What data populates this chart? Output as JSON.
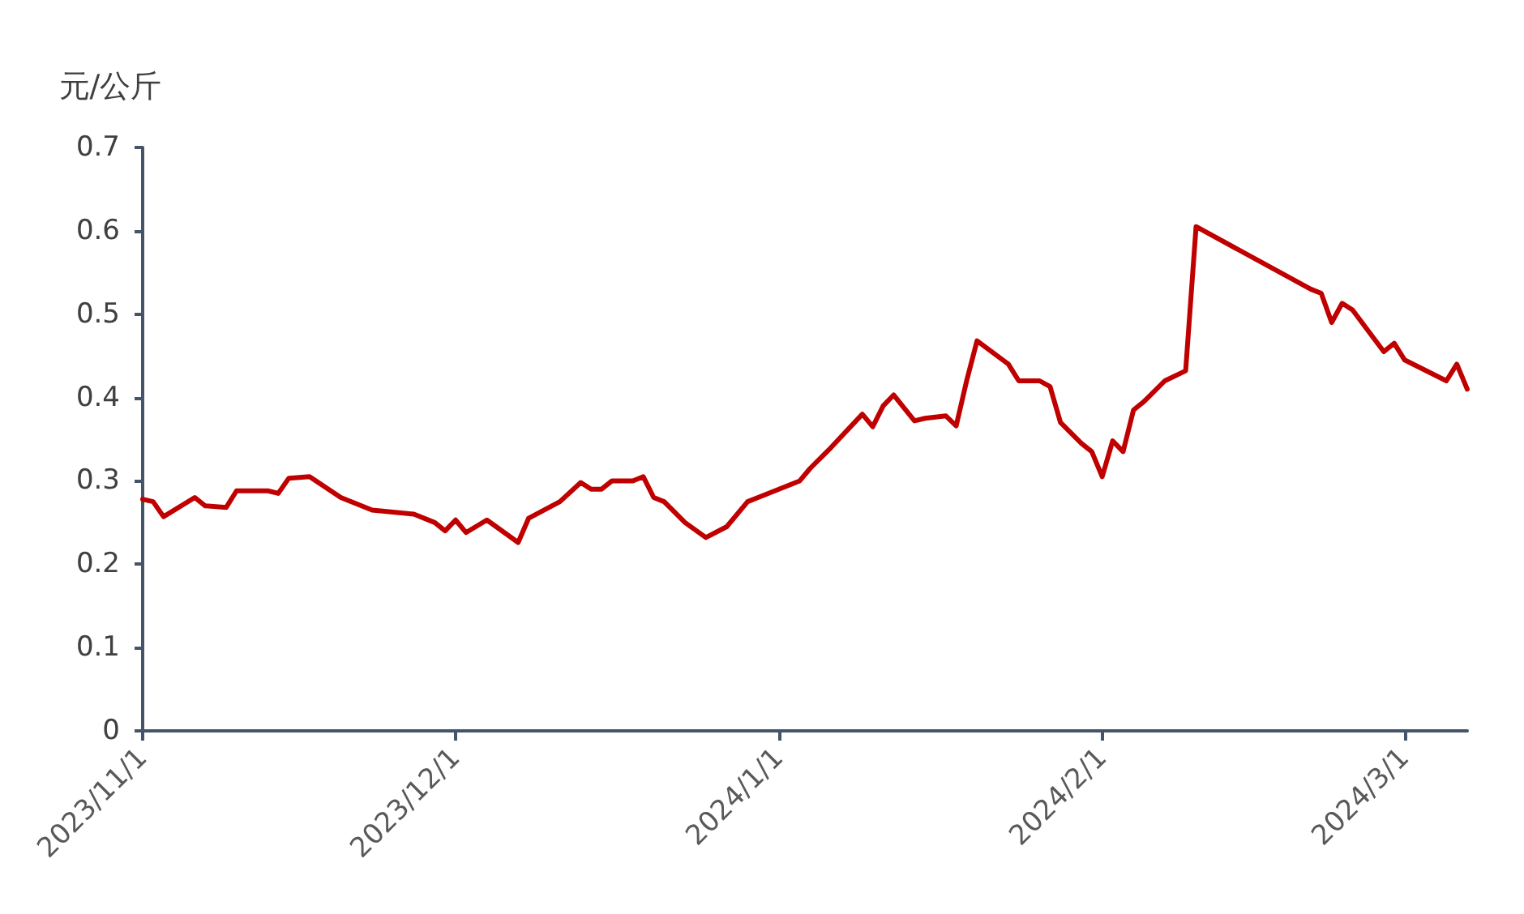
{
  "chart_data": {
    "type": "line",
    "ylabel": "元/公斤",
    "x": [
      "2023-11-01",
      "2023-11-02",
      "2023-11-03",
      "2023-11-06",
      "2023-11-07",
      "2023-11-09",
      "2023-11-10",
      "2023-11-13",
      "2023-11-14",
      "2023-11-15",
      "2023-11-17",
      "2023-11-20",
      "2023-11-23",
      "2023-11-27",
      "2023-11-29",
      "2023-11-30",
      "2023-12-01",
      "2023-12-02",
      "2023-12-04",
      "2023-12-06",
      "2023-12-07",
      "2023-12-08",
      "2023-12-11",
      "2023-12-13",
      "2023-12-14",
      "2023-12-15",
      "2023-12-16",
      "2023-12-18",
      "2023-12-19",
      "2023-12-20",
      "2023-12-21",
      "2023-12-23",
      "2023-12-25",
      "2023-12-27",
      "2023-12-29",
      "2023-12-30",
      "2024-01-01",
      "2024-01-03",
      "2024-01-04",
      "2024-01-06",
      "2024-01-09",
      "2024-01-10",
      "2024-01-11",
      "2024-01-12",
      "2024-01-14",
      "2024-01-15",
      "2024-01-17",
      "2024-01-18",
      "2024-01-19",
      "2024-01-20",
      "2024-01-23",
      "2024-01-24",
      "2024-01-26",
      "2024-01-27",
      "2024-01-28",
      "2024-01-30",
      "2024-01-31",
      "2024-02-01",
      "2024-02-02",
      "2024-02-03",
      "2024-02-04",
      "2024-02-05",
      "2024-02-07",
      "2024-02-09",
      "2024-02-10",
      "2024-02-21",
      "2024-02-22",
      "2024-02-23",
      "2024-02-24",
      "2024-02-25",
      "2024-02-28",
      "2024-02-29",
      "2024-03-01",
      "2024-03-05",
      "2024-03-06",
      "2024-03-07"
    ],
    "series": [
      {
        "color": "#c00000",
        "values": [
          0.278,
          0.275,
          0.257,
          0.28,
          0.27,
          0.268,
          0.288,
          0.288,
          0.285,
          0.303,
          0.305,
          0.28,
          0.265,
          0.26,
          0.25,
          0.24,
          0.253,
          0.238,
          0.253,
          0.235,
          0.226,
          0.255,
          0.275,
          0.298,
          0.29,
          0.29,
          0.3,
          0.3,
          0.305,
          0.28,
          0.275,
          0.25,
          0.232,
          0.245,
          0.275,
          0.28,
          0.29,
          0.3,
          0.315,
          0.34,
          0.38,
          0.365,
          0.39,
          0.403,
          0.372,
          0.375,
          0.378,
          0.366,
          0.42,
          0.468,
          0.44,
          0.42,
          0.42,
          0.413,
          0.37,
          0.345,
          0.335,
          0.305,
          0.348,
          0.335,
          0.385,
          0.395,
          0.42,
          0.432,
          0.605,
          0.53,
          0.525,
          0.49,
          0.513,
          0.505,
          0.455,
          0.465,
          0.445,
          0.42,
          0.44,
          0.41
        ]
      }
    ],
    "xlim": [
      "2023-11-01",
      "2024-03-07"
    ],
    "xticks": [
      {
        "value": "2023-11-01",
        "label": "2023/11/1"
      },
      {
        "value": "2023-12-01",
        "label": "2023/12/1"
      },
      {
        "value": "2024-01-01",
        "label": "2024/1/1"
      },
      {
        "value": "2024-02-01",
        "label": "2024/2/1"
      },
      {
        "value": "2024-03-01",
        "label": "2024/3/1"
      }
    ],
    "ylim": [
      0,
      0.7
    ],
    "yticks": [
      0,
      0.1,
      0.2,
      0.3,
      0.4,
      0.5,
      0.6,
      0.7
    ],
    "grid": false,
    "marker": "none",
    "line_style": "solid"
  }
}
